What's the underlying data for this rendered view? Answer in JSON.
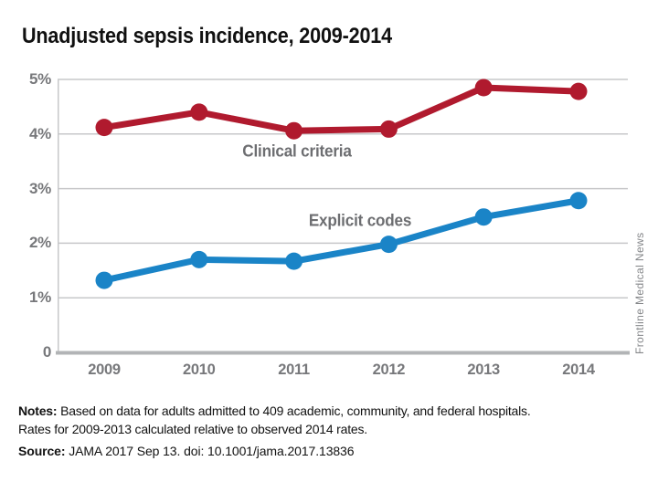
{
  "page": {
    "title": "Unadjusted sepsis incidence, 2009-2014",
    "credit": "Frontline Medical News"
  },
  "chart_data": {
    "type": "line",
    "title": "Unadjusted sepsis incidence, 2009-2014",
    "x": [
      "2009",
      "2010",
      "2011",
      "2012",
      "2013",
      "2014"
    ],
    "series": [
      {
        "name": "Clinical criteria",
        "color": "#b01a2e",
        "values": [
          4.12,
          4.4,
          4.06,
          4.09,
          4.85,
          4.78
        ]
      },
      {
        "name": "Explicit codes",
        "color": "#1a84c7",
        "values": [
          1.32,
          1.7,
          1.67,
          1.98,
          2.48,
          2.78
        ]
      }
    ],
    "xlabel": "",
    "ylabel": "",
    "ylim": [
      0,
      5
    ],
    "yticks": {
      "values": [
        5,
        4,
        3,
        2,
        1,
        0
      ],
      "labels": [
        "5%",
        "4%",
        "3%",
        "2%",
        "1%",
        "0"
      ]
    },
    "grid": true,
    "legend_position": "inline-labels-on-plot",
    "grid_color": "#c7c8ca",
    "axis_color": "#b2b4b6",
    "tick_text_color": "#77787b",
    "series_label_color": "#6d6e71"
  },
  "notes": {
    "prefix": "Notes:",
    "line1": "Based on data for adults admitted to 409 academic, community, and federal hospitals.",
    "line2": "Rates for 2009-2013 calculated relative to observed 2014 rates."
  },
  "source": {
    "prefix": "Source:",
    "text": "JAMA 2017 Sep 13. doi: 10.1001/jama.2017.13836"
  }
}
